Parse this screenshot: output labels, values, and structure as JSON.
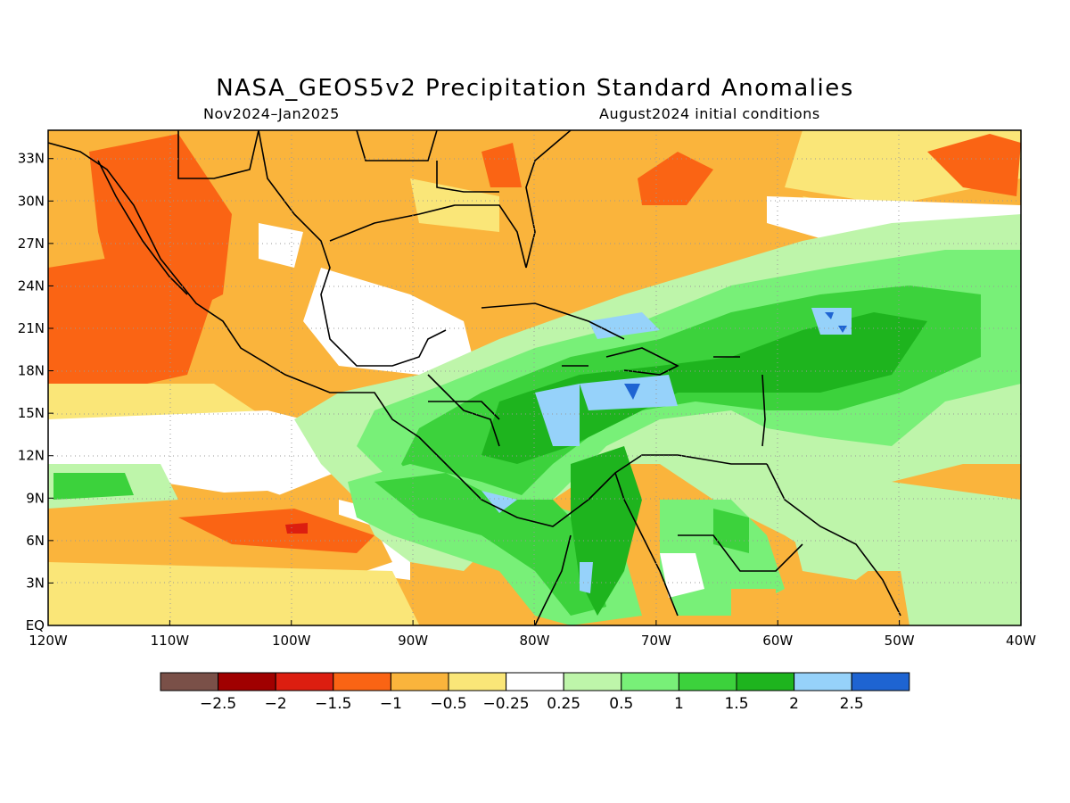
{
  "header": {
    "title": "NASA_GEOS5v2 Precipitation Standard Anomalies",
    "period": "Nov2024–Jan2025",
    "init": "August2024 initial conditions"
  },
  "map": {
    "lon_ticks": [
      "120W",
      "110W",
      "100W",
      "90W",
      "80W",
      "70W",
      "60W",
      "50W",
      "40W"
    ],
    "lat_ticks": [
      "EQ",
      "3N",
      "6N",
      "9N",
      "12N",
      "15N",
      "18N",
      "21N",
      "24N",
      "27N",
      "30N",
      "33N"
    ],
    "lon_range": [
      -120,
      -40
    ],
    "lat_range": [
      0,
      35
    ]
  },
  "legend": {
    "colors": [
      "#7a5048",
      "#a00000",
      "#dc1e10",
      "#fa6414",
      "#fab43c",
      "#fae678",
      "#ffffff",
      "#bef5aa",
      "#78f078",
      "#3cd23c",
      "#1eb41e",
      "#96d2fa",
      "#1e64d2"
    ],
    "labels": [
      "−2.5",
      "−2",
      "−1.5",
      "−1",
      "−0.5",
      "−0.25",
      "0.25",
      "0.5",
      "1",
      "1.5",
      "2",
      "2.5"
    ]
  }
}
